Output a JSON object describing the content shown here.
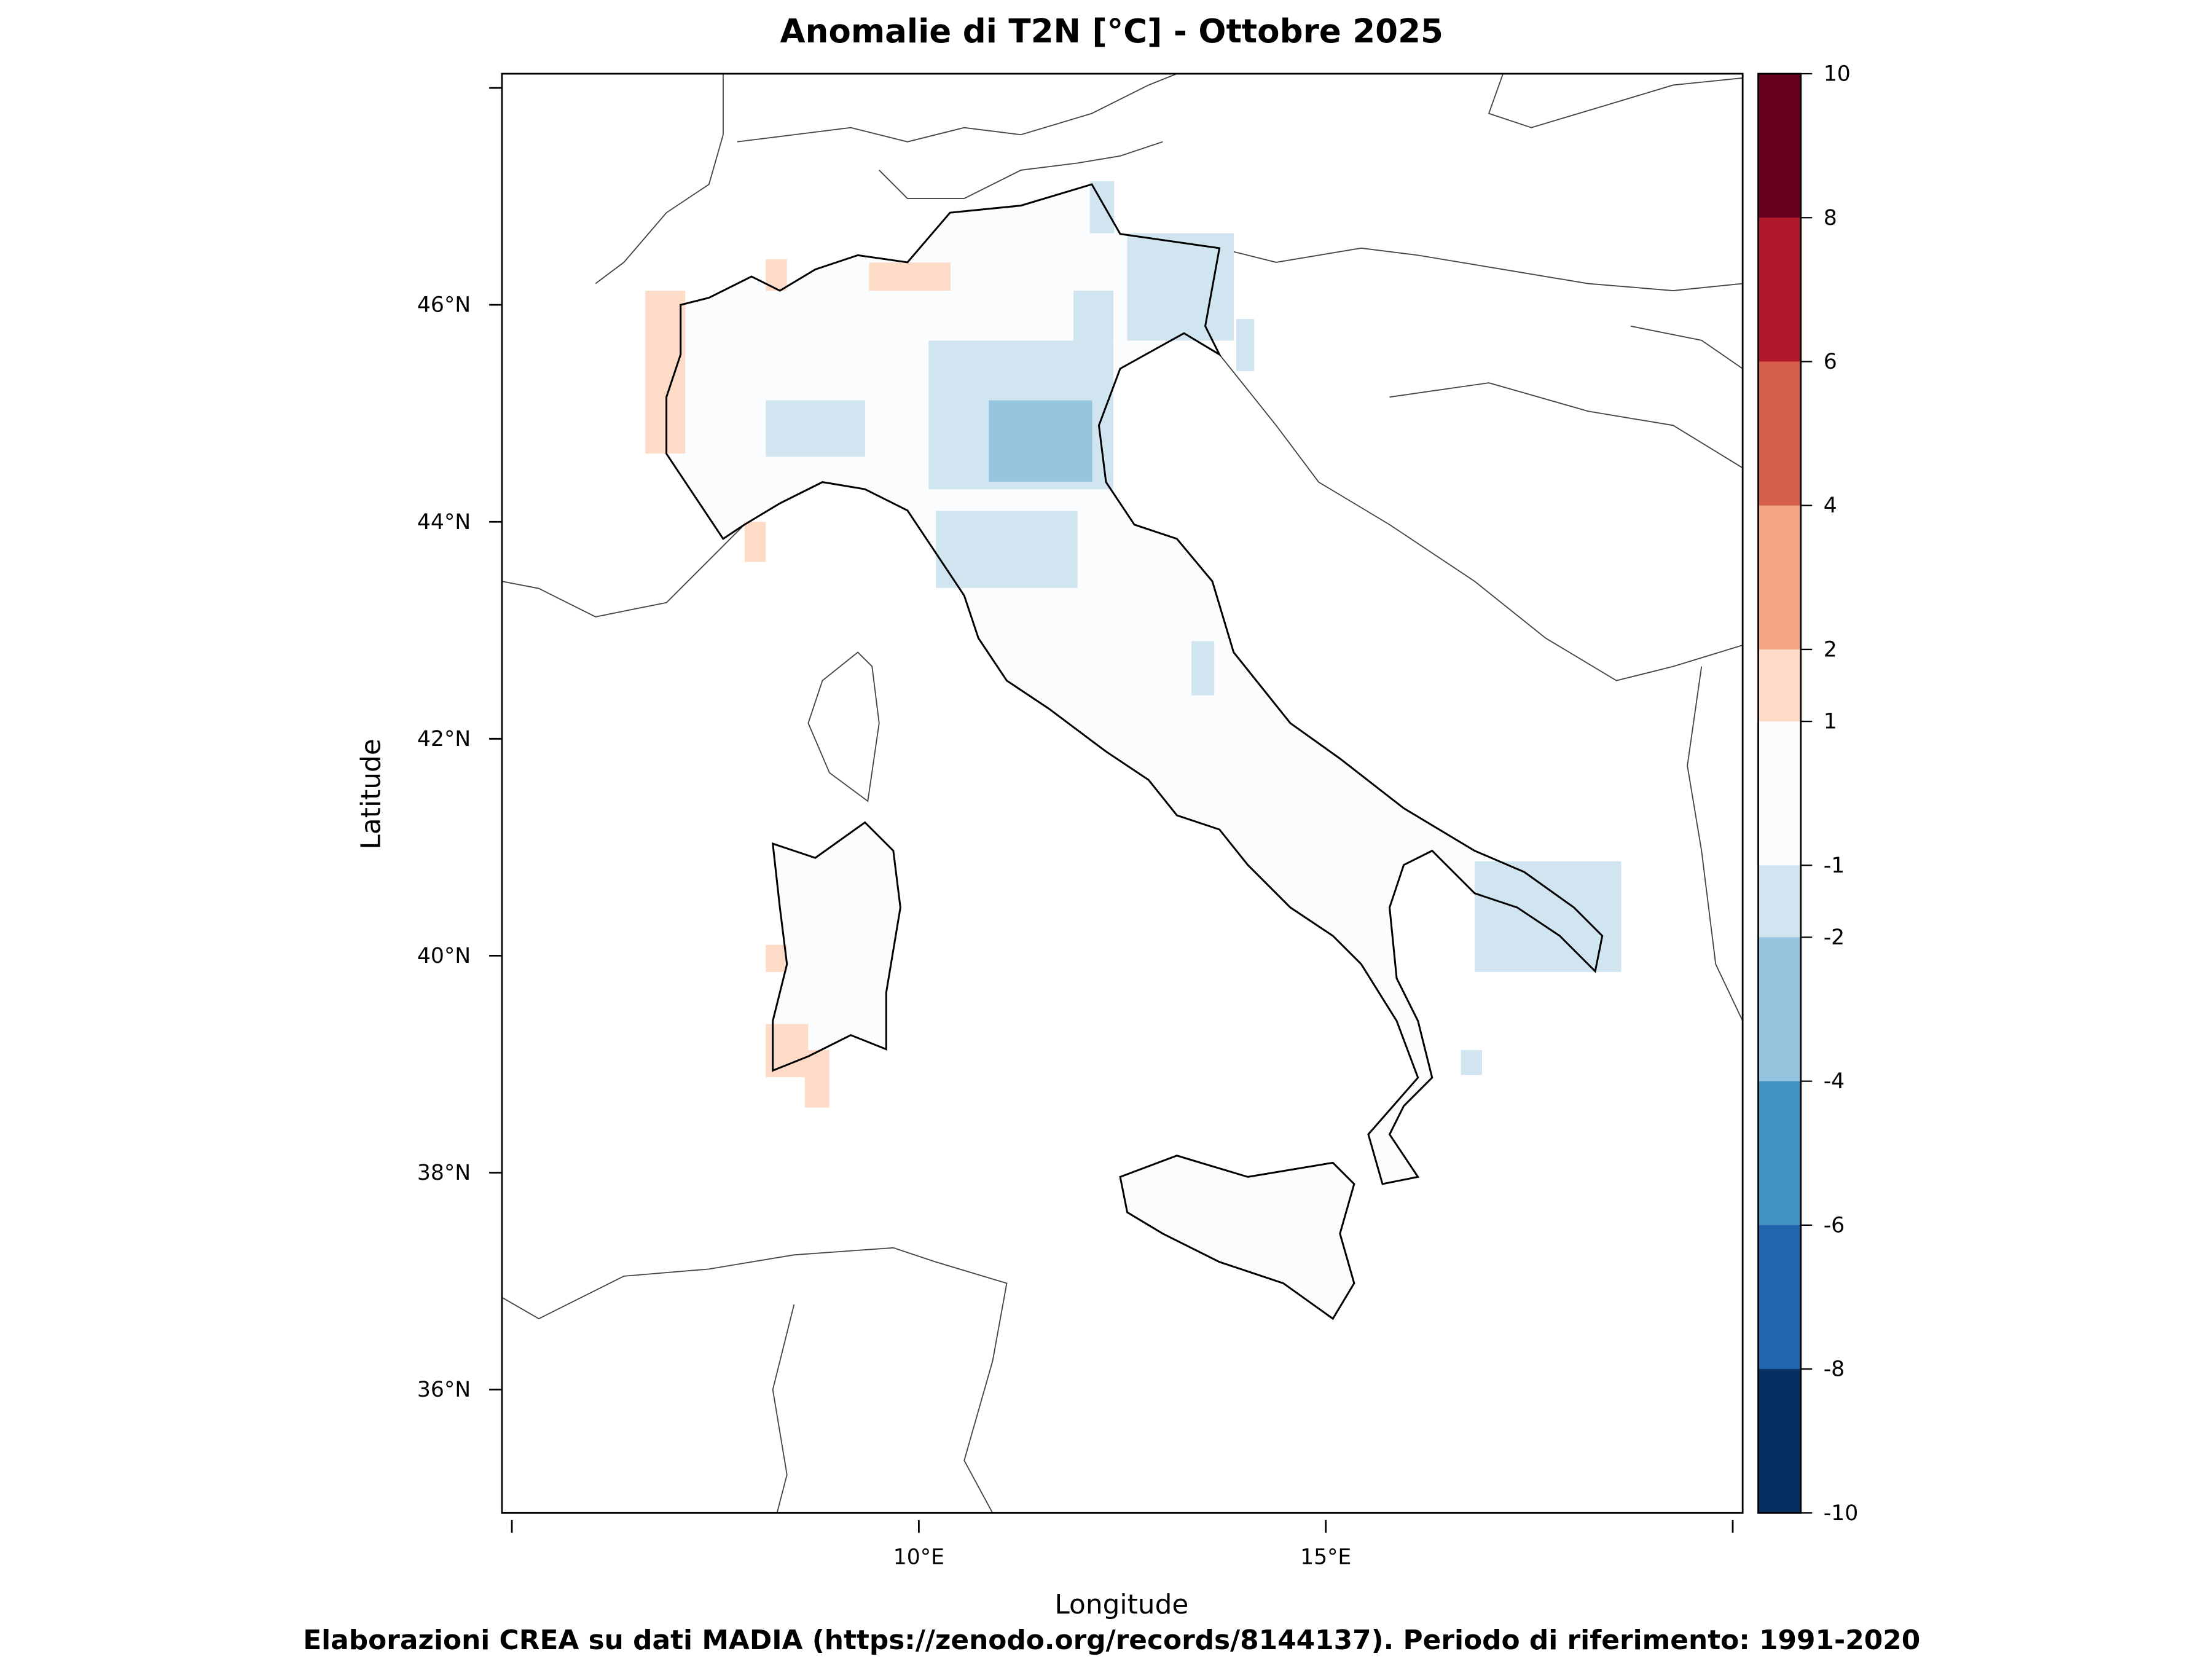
{
  "chart_data": {
    "type": "heatmap",
    "title": "Anomalie di T2N  [°C] - Ottobre 2025",
    "xlabel": "Longitude",
    "ylabel": "Latitude",
    "footer": "Elaborazioni CREA su dati MADIA (https://zenodo.org/records/8144137). Periodo di riferimento: 1991-2020",
    "xlim": [
      4.9,
      20.1
    ],
    "ylim": [
      34.9,
      48.1
    ],
    "x_ticks": [
      {
        "value": 5,
        "label": ""
      },
      {
        "value": 10,
        "label": "10°E"
      },
      {
        "value": 15,
        "label": "15°E"
      },
      {
        "value": 20,
        "label": ""
      }
    ],
    "y_ticks": [
      {
        "value": 36,
        "label": "36°N"
      },
      {
        "value": 38,
        "label": "38°N"
      },
      {
        "value": 40,
        "label": "40°N"
      },
      {
        "value": 42,
        "label": "42°N"
      },
      {
        "value": 44,
        "label": "44°N"
      },
      {
        "value": 46,
        "label": "46°N"
      },
      {
        "value": 48,
        "label": ""
      }
    ],
    "colorbar": {
      "ticks": [
        "10",
        "8",
        "6",
        "4",
        "2",
        "1",
        "-1",
        "-2",
        "-4",
        "-6",
        "-8",
        "-10"
      ],
      "classes": [
        {
          "range": [
            8,
            10
          ],
          "color": "#67001f"
        },
        {
          "range": [
            6,
            8
          ],
          "color": "#b2182b"
        },
        {
          "range": [
            4,
            6
          ],
          "color": "#d6604d"
        },
        {
          "range": [
            2,
            4
          ],
          "color": "#f4a582"
        },
        {
          "range": [
            1,
            2
          ],
          "color": "#fddbc7"
        },
        {
          "range": [
            -1,
            1
          ],
          "color": "#fbfcfe"
        },
        {
          "range": [
            -2,
            -1
          ],
          "color": "#d1e5f0"
        },
        {
          "range": [
            -4,
            -2
          ],
          "color": "#96c6df"
        },
        {
          "range": [
            -6,
            -4
          ],
          "color": "#4393c3"
        },
        {
          "range": [
            -8,
            -6
          ],
          "color": "#2166ac"
        },
        {
          "range": [
            -10,
            -8
          ],
          "color": "#053061"
        }
      ]
    },
    "anomaly_areas": [
      {
        "lon": [
          6.64,
          7.13
        ],
        "lat": [
          44.63,
          46.13
        ],
        "class": "1 to 2"
      },
      {
        "lon": [
          9.39,
          10.39
        ],
        "lat": [
          46.13,
          46.39
        ],
        "class": "1 to 2"
      },
      {
        "lon": [
          8.12,
          8.38
        ],
        "lat": [
          46.13,
          46.42
        ],
        "class": "1 to 2"
      },
      {
        "lon": [
          7.86,
          8.12
        ],
        "lat": [
          43.63,
          44.0
        ],
        "class": "1 to 2"
      },
      {
        "lon": [
          8.12,
          8.38
        ],
        "lat": [
          39.85,
          40.1
        ],
        "class": "1 to 2"
      },
      {
        "lon": [
          8.12,
          8.64
        ],
        "lat": [
          38.88,
          39.37
        ],
        "class": "1 to 2"
      },
      {
        "lon": [
          8.6,
          8.9
        ],
        "lat": [
          38.6,
          39.13
        ],
        "class": "1 to 2"
      },
      {
        "lon": [
          8.12,
          9.34
        ],
        "lat": [
          44.6,
          45.12
        ],
        "class": "-2 to -1"
      },
      {
        "lon": [
          10.12,
          12.39
        ],
        "lat": [
          44.3,
          45.67
        ],
        "class": "-2 to -1"
      },
      {
        "lon": [
          12.56,
          13.87
        ],
        "lat": [
          45.67,
          46.66
        ],
        "class": "-2 to -1"
      },
      {
        "lon": [
          11.9,
          12.39
        ],
        "lat": [
          45.67,
          46.13
        ],
        "class": "-2 to -1"
      },
      {
        "lon": [
          12.1,
          12.4
        ],
        "lat": [
          46.66,
          47.14
        ],
        "class": "-2 to -1"
      },
      {
        "lon": [
          13.9,
          14.12
        ],
        "lat": [
          45.39,
          45.87
        ],
        "class": "-2 to -1"
      },
      {
        "lon": [
          10.21,
          11.95
        ],
        "lat": [
          43.39,
          44.1
        ],
        "class": "-2 to -1"
      },
      {
        "lon": [
          13.35,
          13.63
        ],
        "lat": [
          42.4,
          42.9
        ],
        "class": "-2 to -1"
      },
      {
        "lon": [
          16.83,
          18.63
        ],
        "lat": [
          39.85,
          40.87
        ],
        "class": "-2 to -1"
      },
      {
        "lon": [
          16.66,
          16.92
        ],
        "lat": [
          38.9,
          39.13
        ],
        "class": "-2 to -1"
      },
      {
        "lon": [
          10.86,
          12.13
        ],
        "lat": [
          44.37,
          45.12
        ],
        "class": "-4 to -2"
      }
    ]
  }
}
